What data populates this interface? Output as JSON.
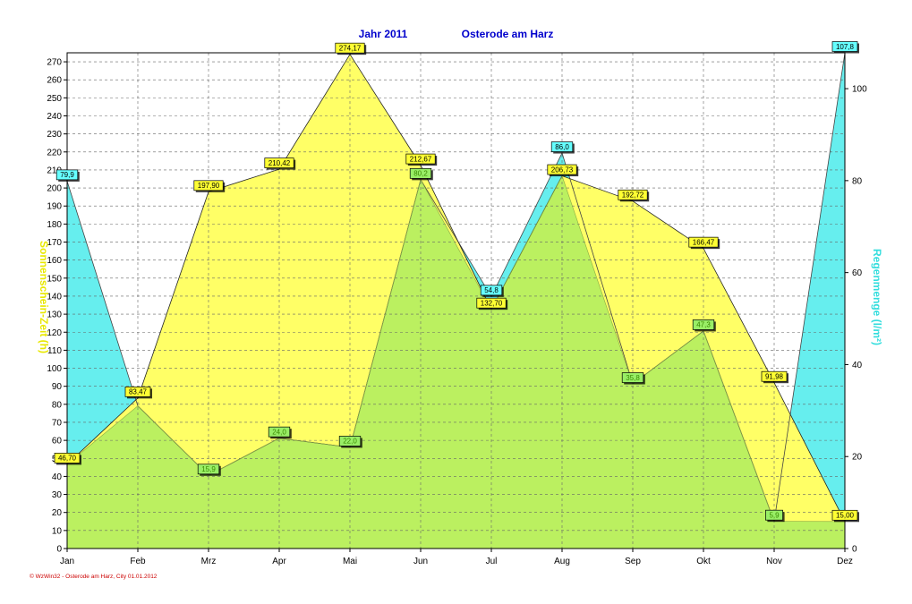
{
  "chart_data": {
    "type": "area",
    "title_left": "Jahr  2011",
    "title_right": "Osterode am Harz",
    "ylabel_left": "Sonnenschein-Zeit  (h)",
    "ylabel_right": "Regenmenge   (l/m²)",
    "categories": [
      "Jan",
      "Feb",
      "Mrz",
      "Apr",
      "Mai",
      "Jun",
      "Jul",
      "Aug",
      "Sep",
      "Okt",
      "Nov",
      "Dez"
    ],
    "ylim_left": [
      0,
      275
    ],
    "yticks_left": [
      0,
      10,
      20,
      30,
      40,
      50,
      60,
      70,
      80,
      90,
      100,
      110,
      120,
      130,
      140,
      150,
      160,
      170,
      180,
      190,
      200,
      210,
      220,
      230,
      240,
      250,
      260,
      270
    ],
    "ylim_right": [
      0,
      107.8
    ],
    "yticks_right": [
      0,
      20,
      40,
      60,
      80,
      100
    ],
    "grid": true,
    "series": [
      {
        "name": "Sonnenschein-Zeit",
        "axis": "left",
        "color": "#ffff66",
        "values": [
          46.7,
          83.47,
          197.9,
          210.42,
          274.17,
          212.67,
          132.7,
          206.73,
          192.72,
          166.47,
          91.98,
          15.0
        ],
        "labels": [
          "46,70",
          "83,47",
          "197,90",
          "210,42",
          "274,17",
          "212,67",
          "132,70",
          "206,73",
          "192,72",
          "166,47",
          "91,98",
          "15,00"
        ]
      },
      {
        "name": "Regenmenge",
        "axis": "right",
        "color": "#66eeee",
        "values": [
          79.9,
          31.0,
          15.9,
          24.0,
          22.0,
          80.2,
          54.8,
          86.0,
          35.8,
          47.3,
          5.9,
          107.8
        ],
        "labels": [
          "79,9",
          "",
          "15,9",
          "24,0",
          "22,0",
          "80,2",
          "54,8",
          "86,0",
          "35,8",
          "47,3",
          "5,9",
          "107,8"
        ]
      }
    ]
  },
  "footer": "© WzWin32  -  Osterode am Harz, City   01.01.2012"
}
